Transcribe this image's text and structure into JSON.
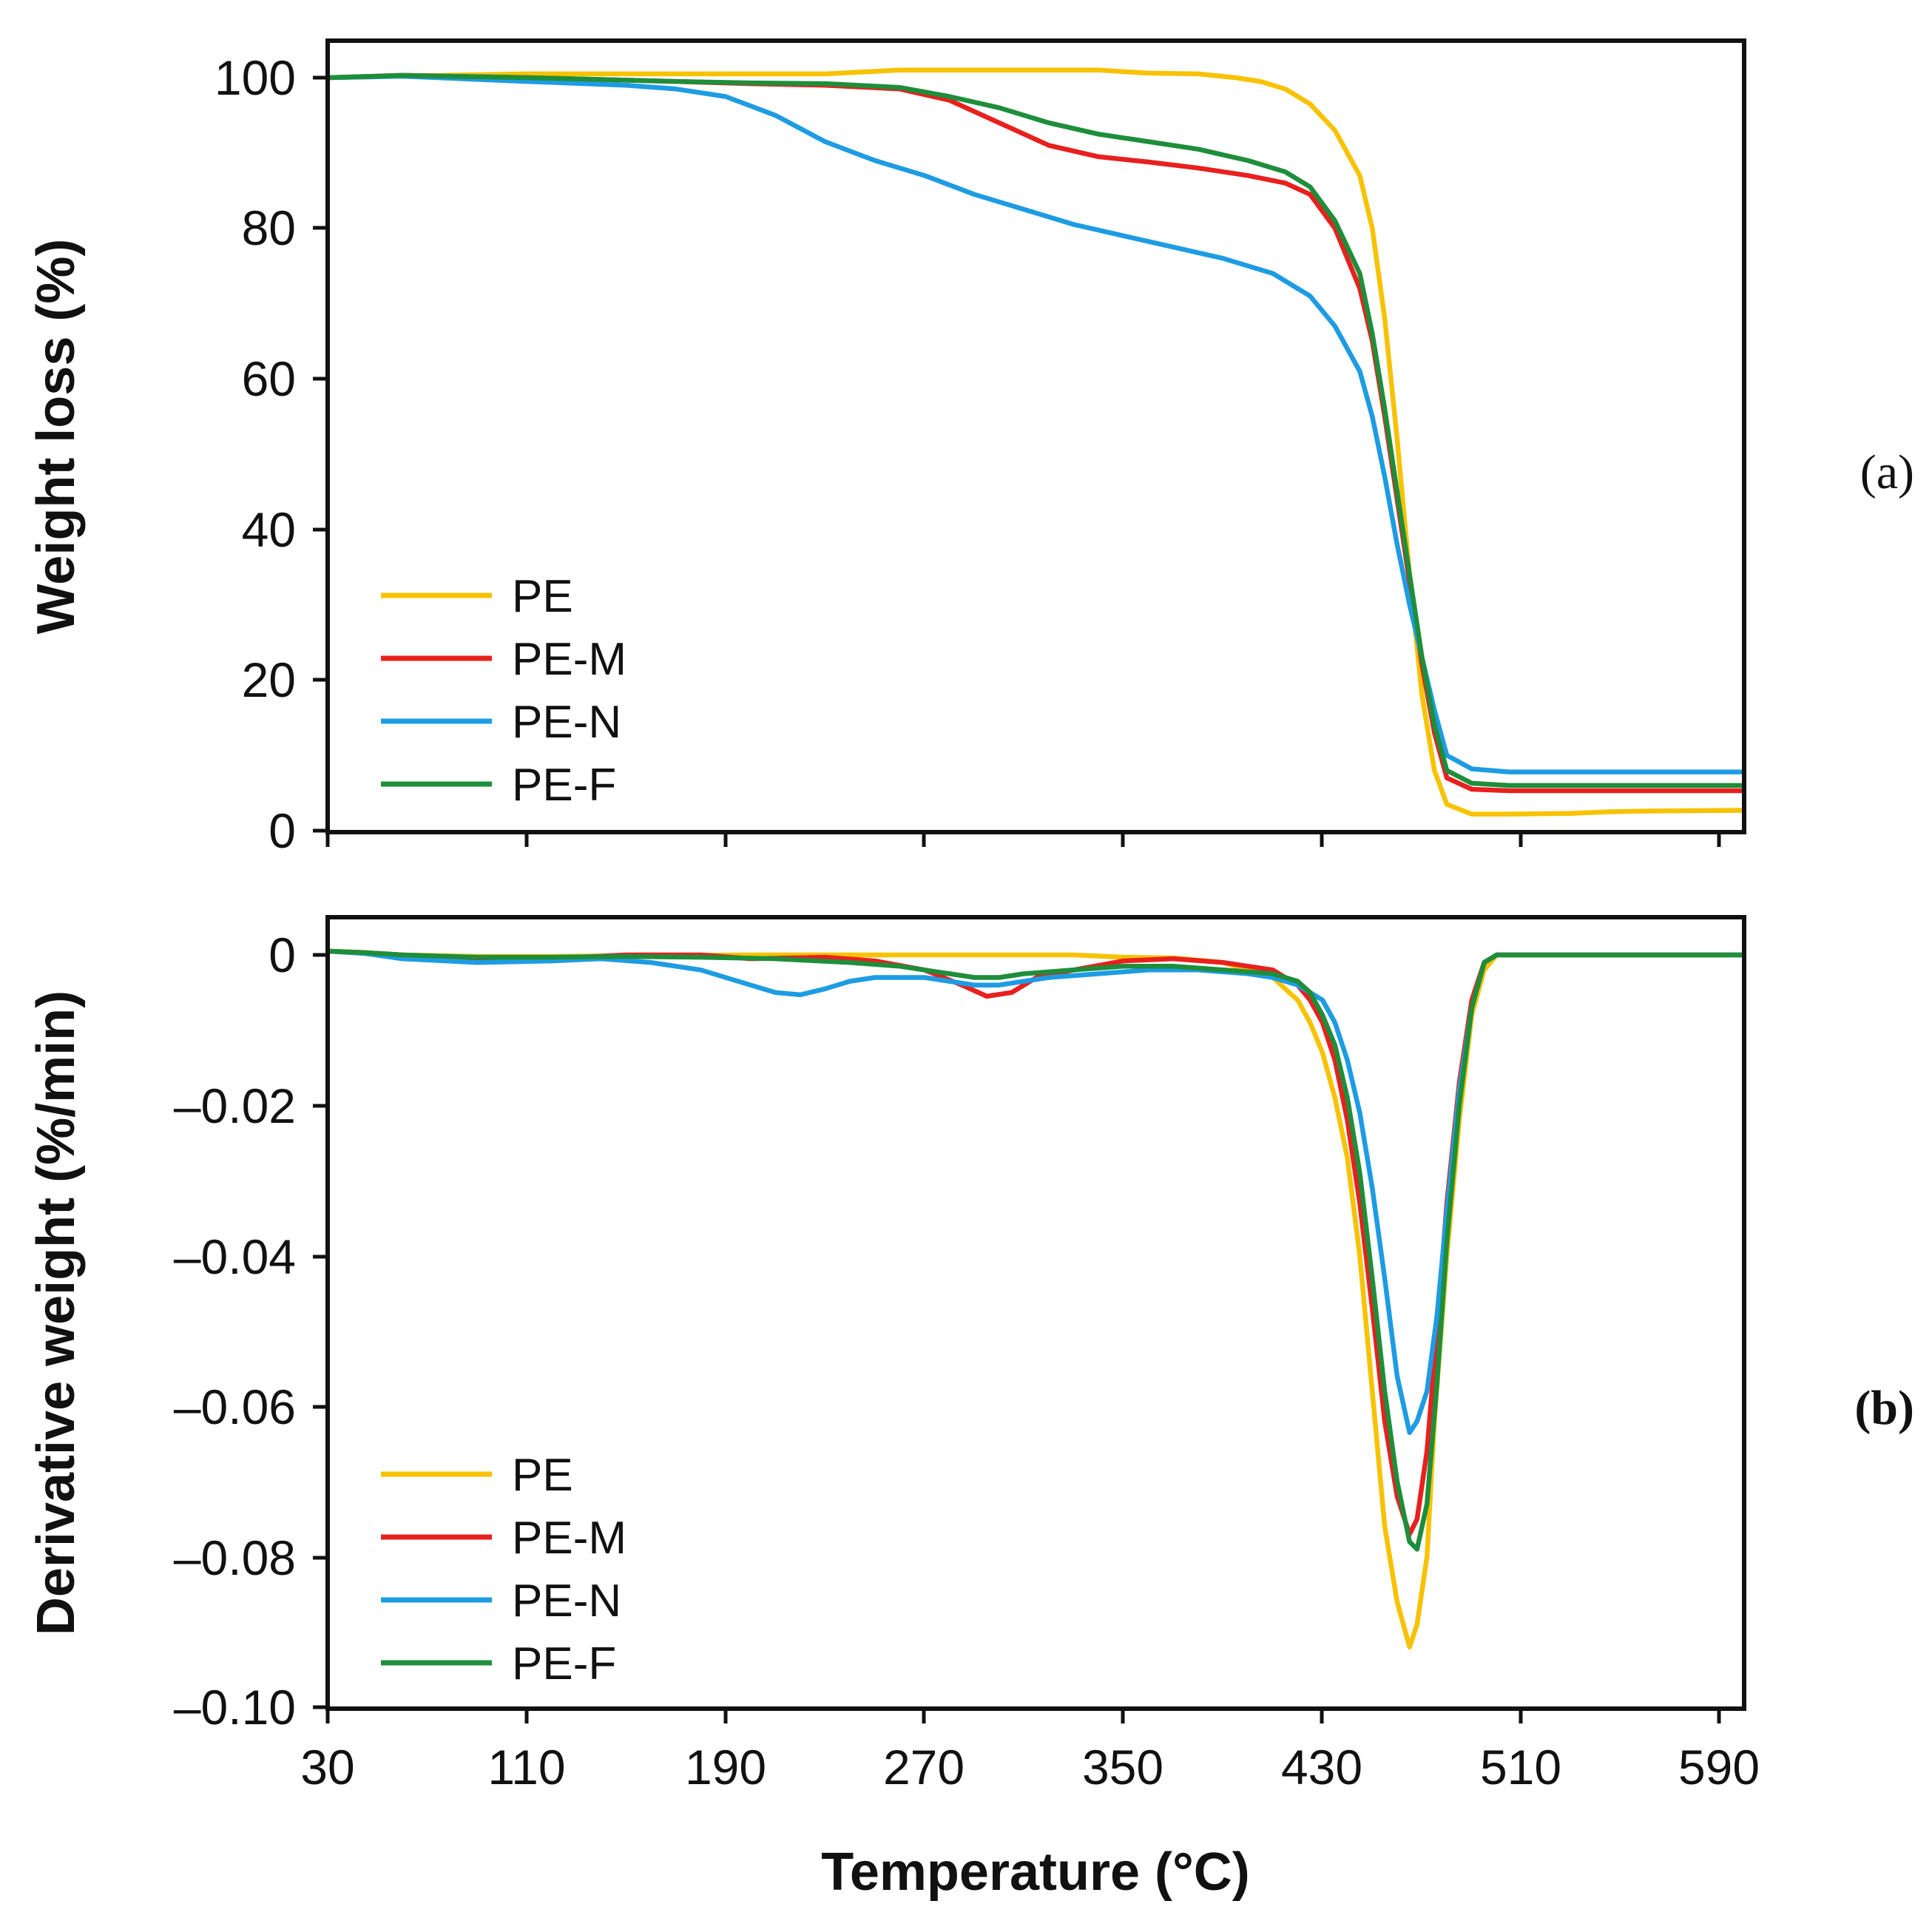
{
  "chart_data": [
    {
      "panel": "(a)",
      "panel_open": "(",
      "panel_letter": "a",
      "panel_close": ")",
      "type": "line",
      "title": "",
      "xlabel": "Temperature (°C)",
      "ylabel": "Weight loss (%)",
      "xlim": [
        30,
        600
      ],
      "ylim": [
        0,
        105
      ],
      "grid": false,
      "legend": "bottom-left",
      "yticks": [
        0,
        20,
        40,
        60,
        80,
        100
      ],
      "ytick_labels": [
        "0",
        "20",
        "40",
        "60",
        "80",
        "100"
      ],
      "xticks": [
        30,
        110,
        190,
        270,
        350,
        430,
        510,
        590
      ],
      "series": [
        {
          "name": "PE",
          "color": "#F7C200",
          "x": [
            30,
            60,
            110,
            170,
            230,
            260,
            300,
            340,
            360,
            380,
            395,
            405,
            415,
            425,
            435,
            445,
            450,
            455,
            460,
            465,
            470,
            475,
            480,
            490,
            505,
            530,
            545,
            560,
            600
          ],
          "y": [
            100,
            100.2,
            100.5,
            100.5,
            100.5,
            101,
            101,
            101,
            100.6,
            100.5,
            100,
            99.5,
            98.5,
            96.5,
            93,
            87,
            80,
            68,
            52,
            34,
            18,
            8,
            3.5,
            2.2,
            2.2,
            2.3,
            2.5,
            2.6,
            2.7
          ]
        },
        {
          "name": "PE-M",
          "color": "#E8201E",
          "x": [
            30,
            60,
            110,
            170,
            200,
            230,
            260,
            280,
            300,
            320,
            340,
            360,
            380,
            400,
            415,
            425,
            435,
            445,
            450,
            455,
            460,
            465,
            470,
            475,
            480,
            490,
            505,
            550,
            600
          ],
          "y": [
            100,
            100.3,
            100,
            99.5,
            99.2,
            99,
            98.5,
            97,
            94,
            91,
            89.5,
            88.8,
            88,
            87,
            86,
            84.5,
            80,
            72,
            65,
            55,
            44,
            33,
            22,
            13,
            7,
            5.5,
            5.3,
            5.3,
            5.3
          ]
        },
        {
          "name": "PE-N",
          "color": "#1E9CE3",
          "x": [
            30,
            60,
            110,
            150,
            170,
            190,
            210,
            230,
            250,
            270,
            290,
            310,
            330,
            350,
            370,
            390,
            410,
            425,
            435,
            445,
            450,
            455,
            460,
            465,
            470,
            475,
            480,
            490,
            505,
            550,
            600
          ],
          "y": [
            100,
            100.2,
            99.5,
            99,
            98.5,
            97.5,
            95,
            91.5,
            89,
            87,
            84.5,
            82.5,
            80.5,
            79,
            77.5,
            76,
            74,
            71,
            67,
            61,
            55,
            47,
            38,
            30,
            23,
            16,
            10,
            8.2,
            7.8,
            7.8,
            7.8
          ]
        },
        {
          "name": "PE-F",
          "color": "#1E8E3A",
          "x": [
            30,
            60,
            110,
            170,
            200,
            230,
            260,
            280,
            300,
            320,
            340,
            360,
            380,
            400,
            415,
            425,
            435,
            445,
            450,
            455,
            460,
            465,
            470,
            475,
            480,
            490,
            505,
            550,
            600
          ],
          "y": [
            100,
            100.3,
            100,
            99.5,
            99.3,
            99.2,
            98.7,
            97.5,
            96,
            94,
            92.5,
            91.5,
            90.5,
            89,
            87.5,
            85.5,
            81,
            74,
            66,
            56,
            45,
            34,
            23,
            14,
            8,
            6.3,
            6,
            6,
            6
          ]
        }
      ]
    },
    {
      "panel": "(b)",
      "panel_open": "(",
      "panel_letter": "b",
      "panel_close": ")",
      "type": "line",
      "title": "",
      "xlabel": "Temperature (°C)",
      "ylabel": "Derivative weight (%/min)",
      "xlim": [
        30,
        600
      ],
      "ylim": [
        -0.1,
        0.005
      ],
      "grid": false,
      "legend": "bottom-left",
      "yticks": [
        0,
        -0.02,
        -0.04,
        -0.06,
        -0.08,
        -0.1
      ],
      "ytick_labels": [
        "0",
        "–0.02",
        "–0.04",
        "–0.06",
        "–0.08",
        "–0.10"
      ],
      "xticks": [
        30,
        110,
        190,
        270,
        350,
        430,
        510,
        590
      ],
      "xtick_labels": [
        "30",
        "110",
        "190",
        "270",
        "350",
        "430",
        "510",
        "590"
      ],
      "series": [
        {
          "name": "PE",
          "color": "#F7C200",
          "x": [
            30,
            45,
            60,
            90,
            120,
            200,
            260,
            330,
            350,
            370,
            390,
            400,
            410,
            420,
            425,
            430,
            435,
            440,
            445,
            450,
            455,
            460,
            465,
            468,
            472,
            475,
            480,
            485,
            490,
            495,
            500,
            510,
            540,
            570,
            600
          ],
          "y": [
            0.0005,
            0.0003,
            0,
            -0.0002,
            -0.0002,
            0,
            0,
            0,
            -0.0003,
            -0.0004,
            -0.001,
            -0.002,
            -0.003,
            -0.006,
            -0.009,
            -0.013,
            -0.019,
            -0.027,
            -0.04,
            -0.058,
            -0.076,
            -0.086,
            -0.092,
            -0.089,
            -0.08,
            -0.062,
            -0.04,
            -0.022,
            -0.008,
            -0.002,
            0,
            0,
            0,
            0,
            0
          ]
        },
        {
          "name": "PE-M",
          "color": "#E8201E",
          "x": [
            30,
            45,
            60,
            90,
            120,
            150,
            180,
            200,
            230,
            250,
            270,
            285,
            295,
            305,
            315,
            330,
            350,
            370,
            390,
            410,
            420,
            425,
            430,
            435,
            440,
            445,
            450,
            455,
            460,
            465,
            468,
            472,
            476,
            480,
            485,
            490,
            495,
            500,
            510,
            540,
            570,
            600
          ],
          "y": [
            0.0005,
            0.0003,
            0,
            -0.0005,
            -0.0005,
            0,
            0,
            -0.0005,
            -0.0003,
            -0.0008,
            -0.002,
            -0.004,
            -0.0055,
            -0.005,
            -0.003,
            -0.002,
            -0.0008,
            -0.0005,
            -0.001,
            -0.002,
            -0.004,
            -0.006,
            -0.009,
            -0.014,
            -0.022,
            -0.033,
            -0.047,
            -0.062,
            -0.072,
            -0.077,
            -0.075,
            -0.066,
            -0.05,
            -0.033,
            -0.017,
            -0.006,
            -0.001,
            0,
            0,
            0,
            0,
            0
          ]
        },
        {
          "name": "PE-N",
          "color": "#1E9CE3",
          "x": [
            30,
            45,
            60,
            90,
            120,
            140,
            160,
            180,
            200,
            210,
            220,
            230,
            240,
            250,
            270,
            280,
            290,
            300,
            320,
            340,
            360,
            380,
            400,
            410,
            420,
            430,
            435,
            440,
            445,
            450,
            455,
            460,
            465,
            468,
            472,
            476,
            480,
            485,
            490,
            495,
            500,
            510,
            540,
            570,
            600
          ],
          "y": [
            0.0005,
            0.0002,
            -0.0005,
            -0.001,
            -0.0008,
            -0.0005,
            -0.001,
            -0.002,
            -0.004,
            -0.005,
            -0.0053,
            -0.0045,
            -0.0035,
            -0.003,
            -0.003,
            -0.0035,
            -0.004,
            -0.004,
            -0.003,
            -0.0025,
            -0.002,
            -0.002,
            -0.0025,
            -0.003,
            -0.004,
            -0.006,
            -0.009,
            -0.014,
            -0.021,
            -0.031,
            -0.043,
            -0.056,
            -0.0635,
            -0.062,
            -0.058,
            -0.048,
            -0.034,
            -0.018,
            -0.007,
            -0.001,
            0,
            0,
            0,
            0,
            0
          ]
        },
        {
          "name": "PE-F",
          "color": "#1E8E3A",
          "x": [
            30,
            45,
            60,
            90,
            120,
            150,
            180,
            210,
            240,
            260,
            280,
            290,
            300,
            310,
            330,
            350,
            370,
            390,
            410,
            420,
            425,
            430,
            435,
            440,
            445,
            450,
            455,
            460,
            465,
            468,
            472,
            476,
            480,
            485,
            490,
            495,
            500,
            510,
            540,
            570,
            600
          ],
          "y": [
            0.0005,
            0.0003,
            0,
            -0.0003,
            -0.0003,
            -0.0002,
            -0.0003,
            -0.0005,
            -0.001,
            -0.0015,
            -0.0025,
            -0.003,
            -0.003,
            -0.0025,
            -0.002,
            -0.0015,
            -0.0015,
            -0.002,
            -0.0025,
            -0.0035,
            -0.005,
            -0.008,
            -0.012,
            -0.019,
            -0.029,
            -0.043,
            -0.058,
            -0.07,
            -0.078,
            -0.079,
            -0.073,
            -0.057,
            -0.038,
            -0.02,
            -0.007,
            -0.001,
            0,
            0,
            0,
            0,
            0
          ]
        }
      ]
    }
  ]
}
